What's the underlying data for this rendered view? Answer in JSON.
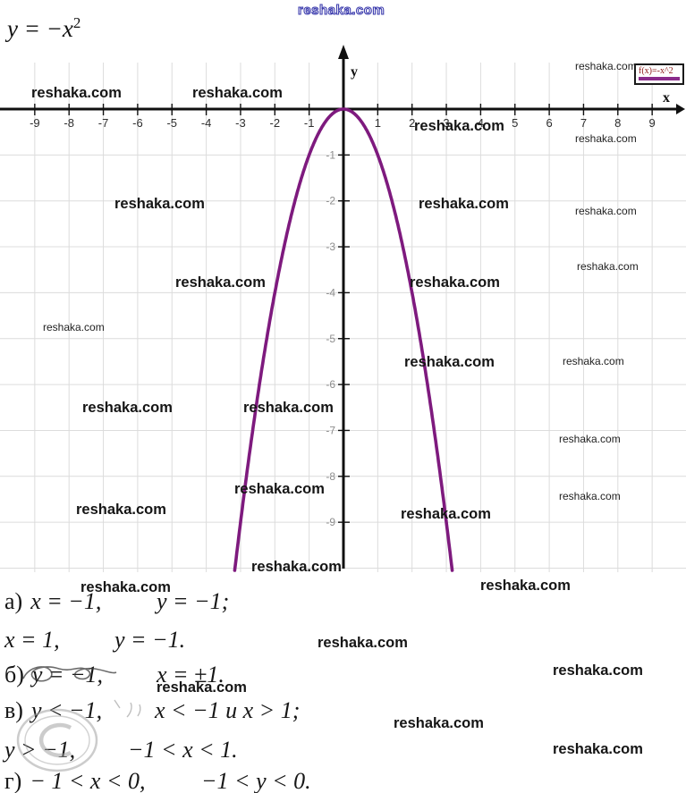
{
  "page": {
    "formula_base": "y = −x",
    "formula_sup": "2"
  },
  "watermark": {
    "text": "reshaka.com"
  },
  "chart_data": {
    "type": "line",
    "title": "y = -x^2",
    "function": "y = -x^2",
    "xlabel": "x",
    "ylabel": "y",
    "xlim": [
      -9.9,
      9.9
    ],
    "ylim": [
      -10,
      1.3
    ],
    "x_ticks": [
      -9,
      -8,
      -7,
      -6,
      -5,
      -4,
      -3,
      -2,
      -1,
      1,
      2,
      3,
      4,
      5,
      6,
      7,
      8,
      9
    ],
    "y_ticks": [
      -1,
      -2,
      -3,
      -4,
      -5,
      -6,
      -7,
      -8,
      -9
    ],
    "grid": true,
    "legend": {
      "label": "f(x)=-x^2",
      "position": "top-right",
      "line_color": "#8b2b8b",
      "text_color": "#8b1616"
    },
    "series": [
      {
        "name": "f(x)=-x^2",
        "color": "#7e1a7e",
        "points": [
          [
            -3,
            -9
          ],
          [
            -2.5,
            -6.25
          ],
          [
            -2,
            -4
          ],
          [
            -1.5,
            -2.25
          ],
          [
            -1,
            -1
          ],
          [
            -0.5,
            -0.25
          ],
          [
            0,
            0
          ],
          [
            0.5,
            -0.25
          ],
          [
            1,
            -1
          ],
          [
            1.5,
            -2.25
          ],
          [
            2,
            -4
          ],
          [
            2.5,
            -6.25
          ],
          [
            3,
            -9
          ]
        ]
      }
    ]
  },
  "solutions": [
    {
      "label": "а)",
      "part1": "x = −1,",
      "part2": "y = −1;"
    },
    {
      "label": "",
      "part1": "x = 1,",
      "part2": "y = −1."
    },
    {
      "label": "б)",
      "part1": "y = −1,",
      "part2": "x = ±1."
    },
    {
      "label": "в)",
      "part1": "y < −1,",
      "part2": "x < −1 и x > 1;"
    },
    {
      "label": "",
      "part1": "y > −1,",
      "part2": "−1 < x < 1."
    },
    {
      "label": "г)",
      "part1": "− 1 < x < 0,",
      "part2": "−1 < y < 0."
    }
  ]
}
